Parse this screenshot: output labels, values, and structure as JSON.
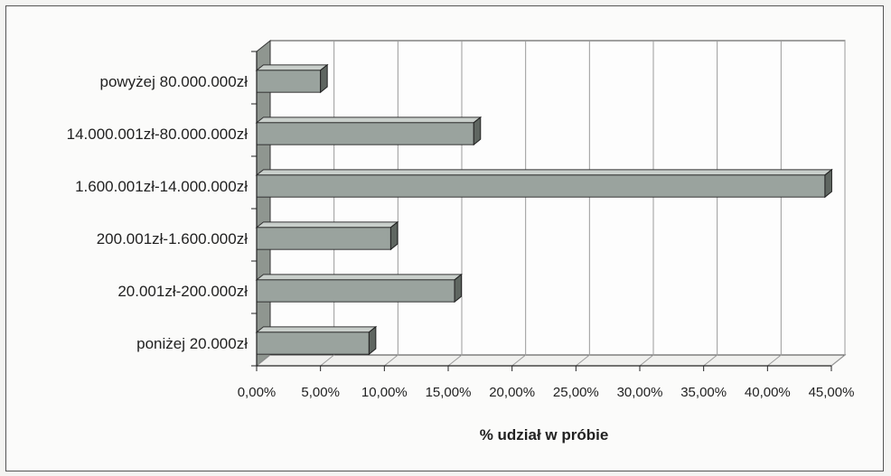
{
  "chart_data": {
    "type": "bar",
    "orientation": "horizontal",
    "categories": [
      "powyżej 80.000.000zł",
      "14.000.001zł-80.000.000zł",
      "1.600.001zł-14.000.000zł",
      "200.001zł-1.600.000zł",
      "20.001zł-200.000zł",
      "poniżej 20.000zł"
    ],
    "values": [
      5.0,
      17.0,
      44.5,
      10.5,
      15.5,
      8.8
    ],
    "xlabel": "% udział w próbie",
    "ylabel": "",
    "xlim": [
      0,
      45
    ],
    "x_ticks": [
      0,
      5,
      10,
      15,
      20,
      25,
      30,
      35,
      40,
      45
    ],
    "x_tick_labels": [
      "0,00%",
      "5,00%",
      "10,00%",
      "15,00%",
      "20,00%",
      "25,00%",
      "30,00%",
      "35,00%",
      "40,00%",
      "45,00%"
    ],
    "grid": true,
    "style": "3d",
    "bar_color": "#9aa39e"
  }
}
